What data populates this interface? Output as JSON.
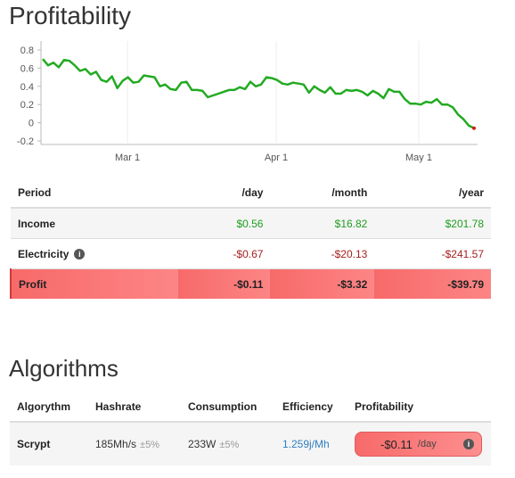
{
  "profitability": {
    "title": "Profitability",
    "chart_data": {
      "type": "line",
      "title": "",
      "xlabel": "",
      "ylabel": "",
      "ylim": [
        -0.2,
        0.8
      ],
      "yticks": [
        "0.8",
        "0.6",
        "0.4",
        "0.2",
        "0",
        "-0.2"
      ],
      "xticks": [
        "Mar 1",
        "Apr 1",
        "May 1"
      ],
      "grid": true,
      "series": [
        {
          "color": "#22aa22",
          "values": [
            0.7,
            0.63,
            0.66,
            0.61,
            0.69,
            0.68,
            0.63,
            0.57,
            0.59,
            0.53,
            0.56,
            0.47,
            0.45,
            0.51,
            0.38,
            0.46,
            0.5,
            0.44,
            0.45,
            0.52,
            0.51,
            0.5,
            0.4,
            0.42,
            0.37,
            0.36,
            0.44,
            0.45,
            0.36,
            0.36,
            0.35,
            0.28,
            0.3,
            0.32,
            0.34,
            0.36,
            0.36,
            0.39,
            0.37,
            0.45,
            0.4,
            0.42,
            0.5,
            0.49,
            0.47,
            0.43,
            0.42,
            0.44,
            0.43,
            0.42,
            0.33,
            0.4,
            0.36,
            0.33,
            0.39,
            0.32,
            0.32,
            0.36,
            0.35,
            0.36,
            0.34,
            0.3,
            0.35,
            0.32,
            0.27,
            0.37,
            0.34,
            0.34,
            0.26,
            0.21,
            0.21,
            0.2,
            0.23,
            0.22,
            0.26,
            0.2,
            0.2,
            0.17,
            0.09,
            0.04,
            -0.03,
            -0.06
          ]
        }
      ]
    },
    "table": {
      "headers": [
        "Period",
        "/day",
        "/month",
        "/year"
      ],
      "income": {
        "label": "Income",
        "day": "$0.56",
        "month": "$16.82",
        "year": "$201.78"
      },
      "electricity": {
        "label": "Electricity",
        "day": "-$0.67",
        "month": "-$20.13",
        "year": "-$241.57"
      },
      "profit": {
        "label": "Profit",
        "day": "-$0.11",
        "month": "-$3.32",
        "year": "-$39.79"
      },
      "info_glyph": "i"
    }
  },
  "algorithms": {
    "title": "Algorithms",
    "headers": [
      "Algorythm",
      "Hashrate",
      "Consumption",
      "Efficiency",
      "Profitability"
    ],
    "row": {
      "name": "Scrypt",
      "hashrate": "185Mh/s",
      "hashrate_tol": "±5%",
      "consumption": "233W",
      "consumption_tol": "±5%",
      "efficiency": "1.259j/Mh",
      "profit_value": "-$0.11",
      "profit_unit": "/day",
      "info_glyph": "i"
    }
  }
}
